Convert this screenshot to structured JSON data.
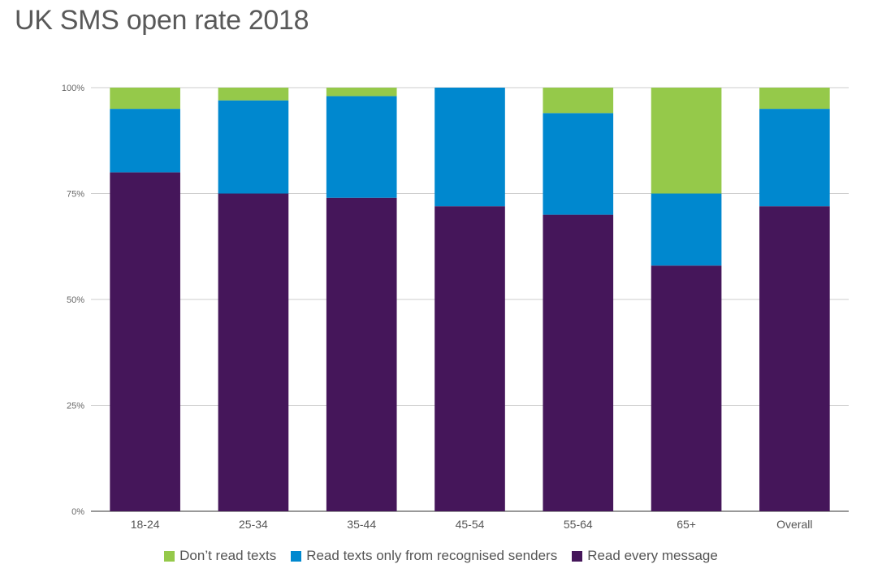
{
  "chart_data": {
    "type": "bar",
    "stacked": true,
    "title": "UK SMS open rate 2018",
    "xlabel": "",
    "ylabel": "",
    "categories": [
      "18-24",
      "25-34",
      "35-44",
      "45-54",
      "55-64",
      "65+",
      "Overall"
    ],
    "series": [
      {
        "name": "Read every message",
        "color": "#45165a",
        "values": [
          80,
          75,
          74,
          72,
          70,
          58,
          72
        ]
      },
      {
        "name": "Read texts only from recognised senders",
        "color": "#0088cf",
        "values": [
          15,
          22,
          24,
          28,
          24,
          17,
          23
        ]
      },
      {
        "name": "Don’t read texts",
        "color": "#95c94a",
        "values": [
          5,
          3,
          2,
          0,
          6,
          25,
          5
        ]
      }
    ],
    "ylim": [
      0,
      100
    ],
    "yticks": [
      0,
      25,
      50,
      75,
      100
    ],
    "ytick_labels": [
      "0%",
      "25%",
      "50%",
      "75%",
      "100%"
    ],
    "grid": true,
    "legend_position": "bottom",
    "legend_order": [
      2,
      1,
      0
    ]
  }
}
